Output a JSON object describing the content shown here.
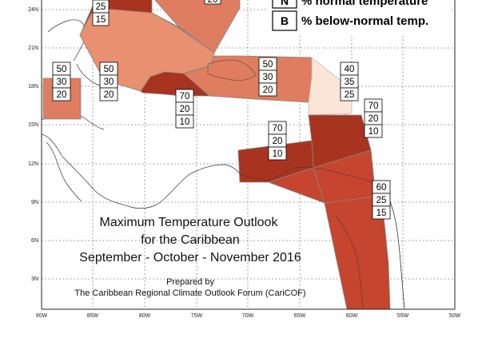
{
  "title": {
    "line1": "Maximum Temperature Outlook",
    "line2": "for the Caribbean",
    "line3": "September - October - November 2016"
  },
  "credit": {
    "line1": "Prepared by",
    "line2": "The Caribbean Regional Climate Outlook Forum (CariCOF)"
  },
  "legend": {
    "entries": [
      {
        "key": "N",
        "text": "% normal temperature"
      },
      {
        "key": "B",
        "text": "% below-normal temp."
      }
    ]
  },
  "axes": {
    "lat_ticks": [
      "24N",
      "21N",
      "18N",
      "15N",
      "12N",
      "9N",
      "6N",
      "3N"
    ],
    "lon_ticks": [
      "90W",
      "85W",
      "80W",
      "75W",
      "70W",
      "65W",
      "60W",
      "55W",
      "50W"
    ]
  },
  "colors": {
    "deep": "#a8341f",
    "mid": "#c5452e",
    "light": "#de7d5f",
    "pale": "#e8906f",
    "faint": "#fbe4d8"
  },
  "regions": [
    {
      "id": "north-top",
      "values": [
        "20"
      ]
    },
    {
      "id": "bahamas",
      "values": [
        "25",
        "15"
      ]
    },
    {
      "id": "belize",
      "values": [
        "50",
        "30",
        "20"
      ]
    },
    {
      "id": "cayman",
      "values": [
        "50",
        "30",
        "20"
      ]
    },
    {
      "id": "jamaica",
      "values": [
        "70",
        "20",
        "10"
      ]
    },
    {
      "id": "hispaniola-pr",
      "values": [
        "50",
        "30",
        "20"
      ]
    },
    {
      "id": "leeward",
      "values": [
        "40",
        "35",
        "25"
      ]
    },
    {
      "id": "windward",
      "values": [
        "70",
        "20",
        "10"
      ]
    },
    {
      "id": "abc-islands",
      "values": [
        "70",
        "20",
        "10"
      ]
    },
    {
      "id": "guianas",
      "values": [
        "60",
        "25",
        "15"
      ]
    }
  ]
}
